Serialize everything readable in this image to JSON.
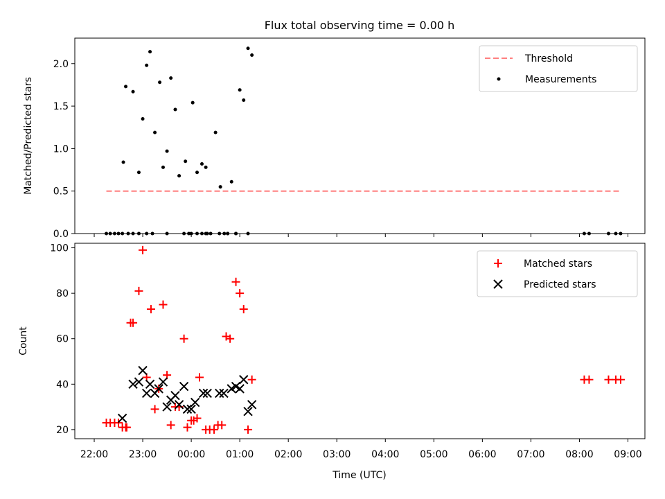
{
  "chart_data": [
    {
      "type": "scatter",
      "title": "Flux total observing time = 0.00 h",
      "ylabel": "Matched/Predicted stars",
      "xlabel": "",
      "xlim": [
        21.6,
        33.35
      ],
      "ylim": [
        0,
        2.3
      ],
      "yticks": [
        0.0,
        0.5,
        1.0,
        1.5,
        2.0
      ],
      "ytick_labels": [
        "0.0",
        "0.5",
        "1.0",
        "1.5",
        "2.0"
      ],
      "legend_position": "top-right",
      "grid": false,
      "threshold": {
        "name": "Threshold",
        "value": 0.5,
        "x_range": [
          22.25,
          32.87
        ],
        "color": "#ff7f7f"
      },
      "series": [
        {
          "name": "Measurements",
          "color": "#000000",
          "x": [
            22.25,
            22.33,
            22.42,
            22.5,
            22.58,
            22.7,
            22.8,
            22.92,
            22.6,
            22.8,
            23.08,
            23.15,
            23.25,
            23.35,
            23.42,
            23.5,
            23.58,
            23.67,
            23.75,
            23.88,
            23.95,
            24.03,
            24.12,
            24.22,
            24.3,
            24.4,
            24.5,
            24.6,
            24.68,
            24.75,
            24.83,
            24.92,
            25.0,
            25.08,
            25.17,
            25.25,
            22.65,
            22.92,
            23.0,
            23.2,
            23.08,
            23.5,
            23.85,
            24.0,
            24.12,
            24.22,
            24.3,
            24.33,
            24.58,
            24.75,
            24.92,
            25.17,
            32.1,
            32.2,
            32.6,
            32.75,
            32.85
          ],
          "y": [
            0,
            0,
            0,
            0,
            0,
            0,
            0,
            0,
            0.84,
            1.67,
            1.98,
            2.14,
            1.19,
            1.78,
            0.78,
            0.97,
            1.83,
            1.46,
            0.68,
            0.85,
            0,
            1.54,
            0.72,
            0.82,
            0.78,
            0,
            1.19,
            0.55,
            0,
            0,
            0.61,
            0,
            1.69,
            1.57,
            2.18,
            2.1,
            1.73,
            0.72,
            1.35,
            0,
            0,
            0,
            0,
            0,
            0,
            0,
            0,
            0,
            0,
            0,
            0,
            0,
            0,
            0,
            0,
            0,
            0
          ]
        }
      ]
    },
    {
      "type": "scatter",
      "title": "",
      "xlabel": "Time (UTC)",
      "ylabel": "Count",
      "xlim": [
        21.6,
        33.35
      ],
      "ylim": [
        16,
        102
      ],
      "yticks": [
        20,
        40,
        60,
        80,
        100
      ],
      "xticks": [
        22,
        23,
        24,
        25,
        26,
        27,
        28,
        29,
        30,
        31,
        32,
        33
      ],
      "xtick_labels": [
        "22:00",
        "23:00",
        "00:00",
        "01:00",
        "02:00",
        "03:00",
        "04:00",
        "05:00",
        "06:00",
        "07:00",
        "08:00",
        "09:00"
      ],
      "legend_position": "top-right",
      "grid": false,
      "series": [
        {
          "name": "Matched stars",
          "color": "#ff0000",
          "marker": "plus",
          "x": [
            22.25,
            22.33,
            22.42,
            22.5,
            22.58,
            22.65,
            22.75,
            22.8,
            22.67,
            22.92,
            23.0,
            23.08,
            23.17,
            23.25,
            23.33,
            23.42,
            23.5,
            23.58,
            23.67,
            23.75,
            23.85,
            23.92,
            24.0,
            24.05,
            24.12,
            24.17,
            24.3,
            24.38,
            24.47,
            24.55,
            24.63,
            24.72,
            24.8,
            24.92,
            25.0,
            25.08,
            25.17,
            25.25,
            32.1,
            32.2,
            32.6,
            32.75,
            32.85
          ],
          "y": [
            23,
            23,
            23,
            23,
            21,
            21,
            67,
            67,
            21,
            81,
            99,
            43,
            73,
            29,
            38,
            75,
            44,
            22,
            30,
            30,
            60,
            21,
            24,
            24,
            25,
            43,
            20,
            20,
            20,
            22,
            22,
            61,
            60,
            85,
            80,
            73,
            20,
            42,
            42,
            42,
            42,
            42,
            42
          ]
        },
        {
          "name": "Predicted stars",
          "color": "#000000",
          "marker": "x",
          "x": [
            22.58,
            22.8,
            22.92,
            23.0,
            23.08,
            23.15,
            23.25,
            23.33,
            23.42,
            23.5,
            23.58,
            23.67,
            23.75,
            23.85,
            23.92,
            24.0,
            24.08,
            24.25,
            24.33,
            24.58,
            24.67,
            24.83,
            24.92,
            25.0,
            25.08,
            25.17,
            25.25
          ],
          "y": [
            25,
            40,
            41,
            46,
            36,
            40,
            36,
            38,
            41,
            30,
            33,
            35,
            31,
            39,
            29,
            29,
            32,
            36,
            36,
            36,
            36,
            38,
            39,
            38,
            42,
            28,
            31
          ]
        }
      ]
    }
  ]
}
